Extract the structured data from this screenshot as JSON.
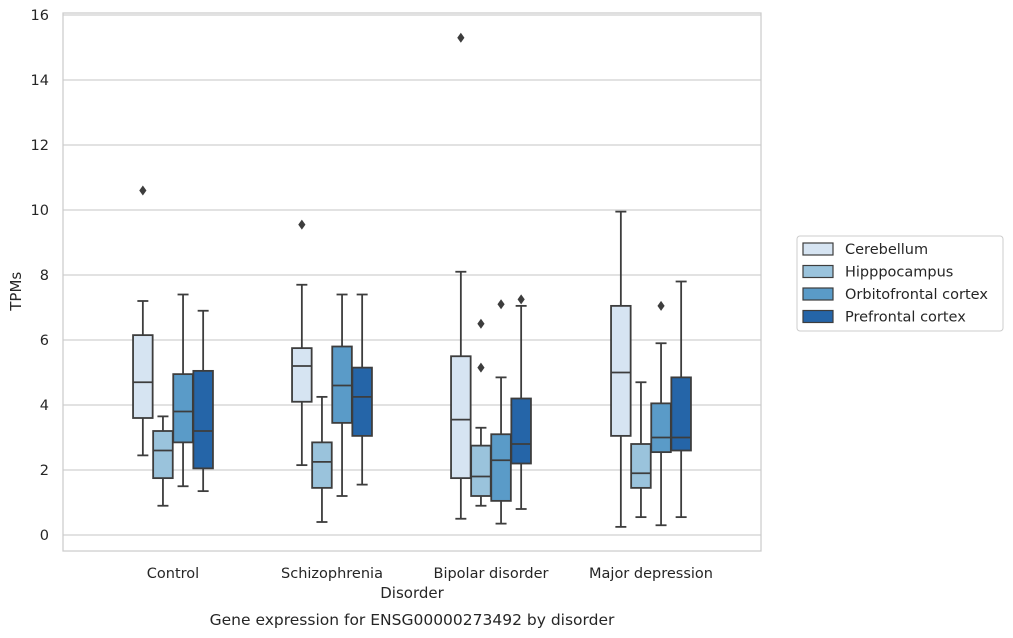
{
  "chart_data": {
    "type": "box",
    "title": "Gene expression for ENSG00000273492 by disorder",
    "xlabel": "Disorder",
    "ylabel": "TPMs",
    "ylim": [
      -0.5,
      16.2
    ],
    "yticks": [
      0,
      2,
      4,
      6,
      8,
      10,
      12,
      14,
      16
    ],
    "grid": true,
    "legend_position": "center-right",
    "categories": [
      "Control",
      "Schizophrenia",
      "Bipolar disorder",
      "Major depression"
    ],
    "series": [
      {
        "name": "Cerebellum",
        "color": "#d6e4f2",
        "boxes": [
          {
            "whislo": 2.45,
            "q1": 3.6,
            "med": 4.7,
            "q3": 6.15,
            "whishi": 7.2,
            "fliers": [
              10.6
            ]
          },
          {
            "whislo": 2.15,
            "q1": 4.1,
            "med": 5.2,
            "q3": 5.75,
            "whishi": 7.7,
            "fliers": [
              9.55
            ]
          },
          {
            "whislo": 0.5,
            "q1": 1.75,
            "med": 3.55,
            "q3": 5.5,
            "whishi": 8.1,
            "fliers": [
              15.3
            ]
          },
          {
            "whislo": 0.25,
            "q1": 3.05,
            "med": 5.0,
            "q3": 7.05,
            "whishi": 9.95,
            "fliers": []
          }
        ]
      },
      {
        "name": "Hipppocampus",
        "color": "#9ac3dc",
        "boxes": [
          {
            "whislo": 0.9,
            "q1": 1.75,
            "med": 2.6,
            "q3": 3.2,
            "whishi": 3.65,
            "fliers": []
          },
          {
            "whislo": 0.4,
            "q1": 1.45,
            "med": 2.25,
            "q3": 2.85,
            "whishi": 4.25,
            "fliers": []
          },
          {
            "whislo": 0.9,
            "q1": 1.2,
            "med": 1.8,
            "q3": 2.75,
            "whishi": 3.3,
            "fliers": [
              5.15,
              6.5
            ]
          },
          {
            "whislo": 0.55,
            "q1": 1.45,
            "med": 1.9,
            "q3": 2.8,
            "whishi": 4.7,
            "fliers": []
          }
        ]
      },
      {
        "name": "Orbitofrontal cortex",
        "color": "#5a9bc8",
        "boxes": [
          {
            "whislo": 1.5,
            "q1": 2.85,
            "med": 3.8,
            "q3": 4.95,
            "whishi": 7.4,
            "fliers": []
          },
          {
            "whislo": 1.2,
            "q1": 3.45,
            "med": 4.6,
            "q3": 5.8,
            "whishi": 7.4,
            "fliers": []
          },
          {
            "whislo": 0.35,
            "q1": 1.05,
            "med": 2.3,
            "q3": 3.1,
            "whishi": 4.85,
            "fliers": [
              7.1
            ]
          },
          {
            "whislo": 0.3,
            "q1": 2.55,
            "med": 3.0,
            "q3": 4.05,
            "whishi": 5.9,
            "fliers": [
              7.05
            ]
          }
        ]
      },
      {
        "name": "Prefrontal cortex",
        "color": "#2565a8",
        "boxes": [
          {
            "whislo": 1.35,
            "q1": 2.05,
            "med": 3.2,
            "q3": 5.05,
            "whishi": 6.9,
            "fliers": []
          },
          {
            "whislo": 1.55,
            "q1": 3.05,
            "med": 4.25,
            "q3": 5.15,
            "whishi": 7.4,
            "fliers": []
          },
          {
            "whislo": 0.8,
            "q1": 2.2,
            "med": 2.8,
            "q3": 4.2,
            "whishi": 7.05,
            "fliers": [
              7.25
            ]
          },
          {
            "whislo": 0.55,
            "q1": 2.6,
            "med": 3.0,
            "q3": 4.85,
            "whishi": 7.8,
            "fliers": []
          }
        ]
      }
    ]
  }
}
